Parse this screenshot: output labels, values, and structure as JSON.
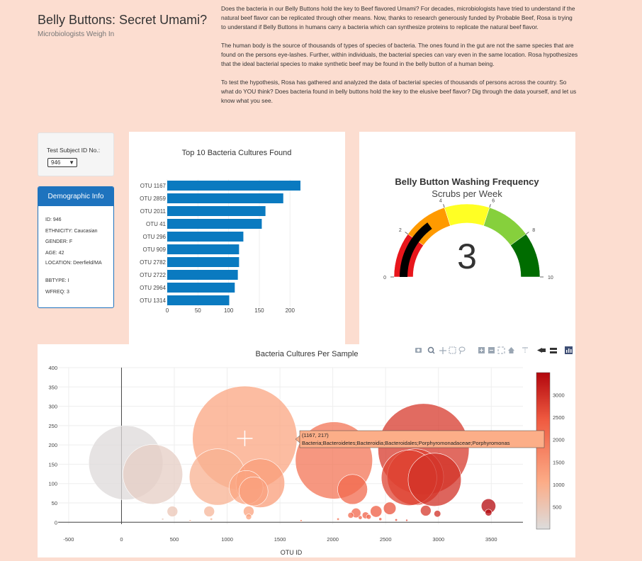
{
  "header": {
    "title": "Belly Buttons: Secret Umami?",
    "subtitle": "Microbiologists Weigh In",
    "paragraphs": [
      "Does the bacteria in our Belly Buttons hold the key to Beef flavored Umami? For decades, microbiologists have tried to understand if the natural beef flavor can be replicated through other means. Now, thanks to research generously funded by Probable Beef, Rosa is trying to understand if Belly Buttons in humans carry a bacteria which can synthesize proteins to replicate the natural beef flavor.",
      "The human body is the source of thousands of types of species of bacteria. The ones found in the gut are not the same species that are found on the persons eye-lashes. Further, within individuals, the bacterial species can vary even in the same location. Rosa hypothesizes that the ideal bacterial species to make synthetic beef may be found in the belly button of a human being.",
      "To test the hypothesis, Rosa has gathered and analyzed the data of bacterial species of thousands of persons across the country. So what do YOU think? Does bacteria found in belly buttons hold the key to the elusive beef flavor? Dig through the data yourself, and let us know what you see."
    ]
  },
  "selector": {
    "label": "Test Subject ID No.:",
    "value": "946"
  },
  "demographics": {
    "heading": "Demographic Info",
    "items": [
      "ID: 946",
      "ETHNICITY: Caucasian",
      "GENDER: F",
      "AGE: 42",
      "LOCATION: Deerfield/MA",
      "BBTYPE: I",
      "WFREQ: 3"
    ]
  },
  "colors": {
    "bar": "#0a7ac0",
    "demo_header": "#1e73be",
    "background": "#fcddd0"
  },
  "chart_data": [
    {
      "type": "bar",
      "orientation": "horizontal",
      "title": "Top 10 Bacteria Cultures Found",
      "categories": [
        "OTU 1167",
        "OTU 2859",
        "OTU 2011",
        "OTU 41",
        "OTU 296",
        "OTU 909",
        "OTU 2782",
        "OTU 2722",
        "OTU 2964",
        "OTU 1314"
      ],
      "values": [
        217,
        189,
        160,
        154,
        124,
        117,
        117,
        115,
        110,
        101
      ],
      "xlim": [
        0,
        217
      ],
      "xticks": [
        0,
        50,
        100,
        150,
        200
      ]
    },
    {
      "type": "gauge",
      "title": "Belly Button Washing Frequency",
      "subtitle": "Scrubs per Week",
      "value": 3,
      "range": [
        0,
        10
      ],
      "ticks": [
        0,
        2,
        4,
        6,
        8,
        10
      ],
      "steps": [
        {
          "range": [
            0,
            2
          ],
          "color": "#e8161c"
        },
        {
          "range": [
            2,
            4
          ],
          "color": "#ff9a00"
        },
        {
          "range": [
            4,
            6
          ],
          "color": "#ffff24"
        },
        {
          "range": [
            6,
            8
          ],
          "color": "#86d03c"
        },
        {
          "range": [
            8,
            10
          ],
          "color": "#006c00"
        }
      ],
      "bar_color": "#000000"
    },
    {
      "type": "scatter",
      "title": "Bacteria Cultures Per Sample",
      "xlabel": "OTU ID",
      "xlim": [
        -600,
        3800
      ],
      "ylim": [
        -5,
        400
      ],
      "xticks": [
        -500,
        0,
        500,
        1000,
        1500,
        2000,
        2500,
        3000,
        3500
      ],
      "yticks": [
        0,
        50,
        100,
        150,
        200,
        250,
        300,
        350,
        400
      ],
      "colorbar_ticks": [
        500,
        1000,
        1500,
        2000,
        2500,
        3000
      ],
      "color_range": [
        0,
        3500
      ],
      "points": [
        {
          "x": 41,
          "y": 154,
          "size": 154
        },
        {
          "x": 296,
          "y": 124,
          "size": 124
        },
        {
          "x": 909,
          "y": 117,
          "size": 117
        },
        {
          "x": 1167,
          "y": 217,
          "size": 217
        },
        {
          "x": 1314,
          "y": 101,
          "size": 101
        },
        {
          "x": 1180,
          "y": 90,
          "size": 70
        },
        {
          "x": 1250,
          "y": 80,
          "size": 60
        },
        {
          "x": 2011,
          "y": 160,
          "size": 160
        },
        {
          "x": 2187,
          "y": 85,
          "size": 62
        },
        {
          "x": 2722,
          "y": 115,
          "size": 115
        },
        {
          "x": 2782,
          "y": 117,
          "size": 117
        },
        {
          "x": 2859,
          "y": 189,
          "size": 189
        },
        {
          "x": 2964,
          "y": 110,
          "size": 110
        },
        {
          "x": 3474,
          "y": 42,
          "size": 30
        },
        {
          "x": 3474,
          "y": 25,
          "size": 14
        },
        {
          "x": 482,
          "y": 28,
          "size": 22
        },
        {
          "x": 830,
          "y": 28,
          "size": 22
        },
        {
          "x": 1204,
          "y": 28,
          "size": 22
        },
        {
          "x": 1204,
          "y": 14,
          "size": 12
        },
        {
          "x": 2410,
          "y": 28,
          "size": 24
        },
        {
          "x": 2539,
          "y": 36,
          "size": 26
        },
        {
          "x": 2220,
          "y": 24,
          "size": 20
        },
        {
          "x": 2310,
          "y": 18,
          "size": 14
        },
        {
          "x": 2880,
          "y": 30,
          "size": 22
        },
        {
          "x": 2990,
          "y": 22,
          "size": 14
        },
        {
          "x": 2170,
          "y": 18,
          "size": 12
        },
        {
          "x": 2260,
          "y": 12,
          "size": 8
        },
        {
          "x": 2340,
          "y": 14,
          "size": 10
        },
        {
          "x": 2450,
          "y": 8,
          "size": 6
        },
        {
          "x": 2050,
          "y": 8,
          "size": 5
        },
        {
          "x": 2600,
          "y": 6,
          "size": 5
        },
        {
          "x": 2700,
          "y": 5,
          "size": 4
        },
        {
          "x": 1700,
          "y": 4,
          "size": 3
        },
        {
          "x": 850,
          "y": 8,
          "size": 5
        },
        {
          "x": 650,
          "y": 4,
          "size": 3
        },
        {
          "x": 390,
          "y": 8,
          "size": 4
        }
      ],
      "hover": {
        "coords": "(1167, 217)",
        "label": "Bacteria;Bacteroidetes;Bacteroidia;Bacteroidales;Porphyromonadaceae;Porphyromonas"
      }
    }
  ]
}
